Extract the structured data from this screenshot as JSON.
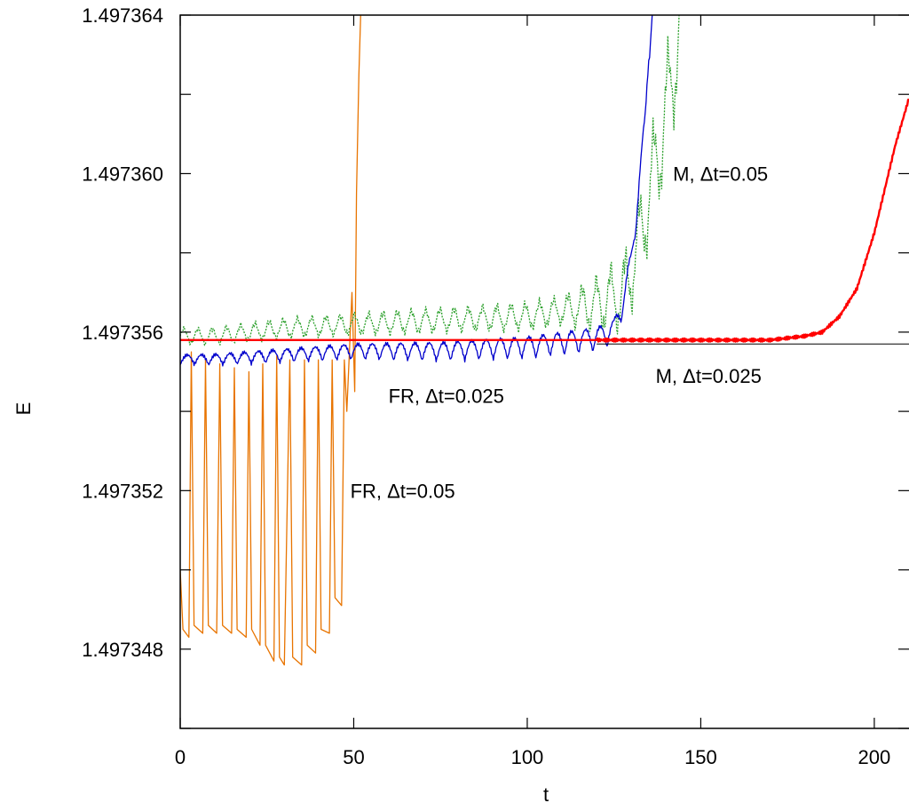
{
  "chart_data": {
    "type": "line",
    "xlabel": "t",
    "ylabel": "E",
    "xlim": [
      0,
      210
    ],
    "ylim": [
      1.497346,
      1.497364
    ],
    "x_ticks": [
      0,
      50,
      100,
      150,
      200
    ],
    "x_tick_labels": [
      "0",
      "50",
      "100",
      "150",
      "200"
    ],
    "y_ticks": [
      1.497346,
      1.497348,
      1.49735,
      1.497352,
      1.497354,
      1.497356,
      1.497358,
      1.49736,
      1.497362,
      1.497364
    ],
    "y_tick_labels": [
      "",
      "1.497348",
      "",
      "1.497352",
      "",
      "1.497356",
      "",
      "1.497360",
      "",
      "1.497364"
    ],
    "grid": false,
    "reference_line": {
      "y": 1.4973557,
      "color": "#000000"
    },
    "series": [
      {
        "color": "#e87400",
        "pattern": "decaying-spikes",
        "points": [
          [
            0,
            1.49735
          ],
          [
            0.8,
            1.4973485
          ],
          [
            2.5,
            1.4973483
          ],
          [
            3.2,
            1.4973555
          ],
          [
            4,
            1.4973486
          ],
          [
            6.5,
            1.4973484
          ],
          [
            7.3,
            1.4973553
          ],
          [
            8.1,
            1.4973486
          ],
          [
            10.5,
            1.4973484
          ],
          [
            11.4,
            1.4973552
          ],
          [
            12.2,
            1.4973486
          ],
          [
            14.8,
            1.4973484
          ],
          [
            15.6,
            1.4973551
          ],
          [
            16.4,
            1.4973485
          ],
          [
            19,
            1.4973483
          ],
          [
            19.8,
            1.497355
          ],
          [
            20.6,
            1.4973485
          ],
          [
            23,
            1.4973481
          ],
          [
            23.8,
            1.4973552
          ],
          [
            24.6,
            1.4973481
          ],
          [
            27,
            1.4973477
          ],
          [
            27.8,
            1.4973554
          ],
          [
            28.6,
            1.4973478
          ],
          [
            30,
            1.4973476
          ],
          [
            31.6,
            1.4973553
          ],
          [
            32.4,
            1.4973478
          ],
          [
            35,
            1.4973476
          ],
          [
            35.8,
            1.4973553
          ],
          [
            36.6,
            1.4973481
          ],
          [
            39,
            1.4973479
          ],
          [
            39.8,
            1.4973553
          ],
          [
            40.6,
            1.4973485
          ],
          [
            43,
            1.4973484
          ],
          [
            43.8,
            1.4973553
          ],
          [
            44.6,
            1.4973493
          ],
          [
            46.5,
            1.4973491
          ],
          [
            47.3,
            1.4973553
          ],
          [
            48,
            1.497354
          ],
          [
            48.8,
            1.4973556
          ],
          [
            49.5,
            1.497357
          ],
          [
            50.3,
            1.4973545
          ],
          [
            50.8,
            1.4973595
          ],
          [
            51.5,
            1.4973625
          ],
          [
            52,
            1.497364
          ]
        ]
      },
      {
        "color": "#2ca02c",
        "pattern": "growing-oscillation",
        "dashed": true,
        "points": [
          [
            0,
            1.4973559
          ],
          [
            10,
            1.4973559
          ],
          [
            30,
            1.4973561
          ],
          [
            50,
            1.4973562
          ],
          [
            75,
            1.4973563
          ],
          [
            100,
            1.4973564
          ],
          [
            120,
            1.4973567
          ],
          [
            128,
            1.497357
          ],
          [
            132,
            1.4973582
          ],
          [
            136,
            1.4973598
          ],
          [
            140,
            1.4973615
          ],
          [
            143,
            1.4973632
          ],
          [
            145,
            1.497364
          ]
        ]
      },
      {
        "color": "#0000cc",
        "pattern": "wiggly-rise",
        "points": [
          [
            0,
            1.4973553
          ],
          [
            10,
            1.4973553
          ],
          [
            30,
            1.4973554
          ],
          [
            50,
            1.4973555
          ],
          [
            75,
            1.4973555
          ],
          [
            100,
            1.4973556
          ],
          [
            120,
            1.4973558
          ],
          [
            125,
            1.497356
          ],
          [
            128,
            1.4973568
          ],
          [
            130,
            1.4973578
          ],
          [
            132,
            1.4973594
          ],
          [
            134,
            1.4973613
          ],
          [
            135,
            1.497363
          ],
          [
            136,
            1.497364
          ]
        ]
      },
      {
        "color": "#ff0000",
        "pattern": "smooth-then-rise",
        "points": [
          [
            0,
            1.4973558
          ],
          [
            50,
            1.4973558
          ],
          [
            100,
            1.4973558
          ],
          [
            150,
            1.4973558
          ],
          [
            170,
            1.4973558
          ],
          [
            180,
            1.4973559
          ],
          [
            185,
            1.497356
          ],
          [
            190,
            1.4973564
          ],
          [
            195,
            1.4973571
          ],
          [
            200,
            1.4973585
          ],
          [
            203,
            1.4973596
          ],
          [
            206,
            1.4973607
          ],
          [
            210,
            1.4973619
          ]
        ]
      }
    ],
    "annotations": [
      {
        "text": "M, Δt=0.05",
        "x": 142,
        "y": 1.49736
      },
      {
        "text": "FR, Δt=0.025",
        "x": 60,
        "y": 1.4973544
      },
      {
        "text": "M,  Δt=0.025",
        "x": 137,
        "y": 1.4973549
      },
      {
        "text": "FR, Δt=0.05",
        "x": 49,
        "y": 1.497352
      }
    ]
  }
}
